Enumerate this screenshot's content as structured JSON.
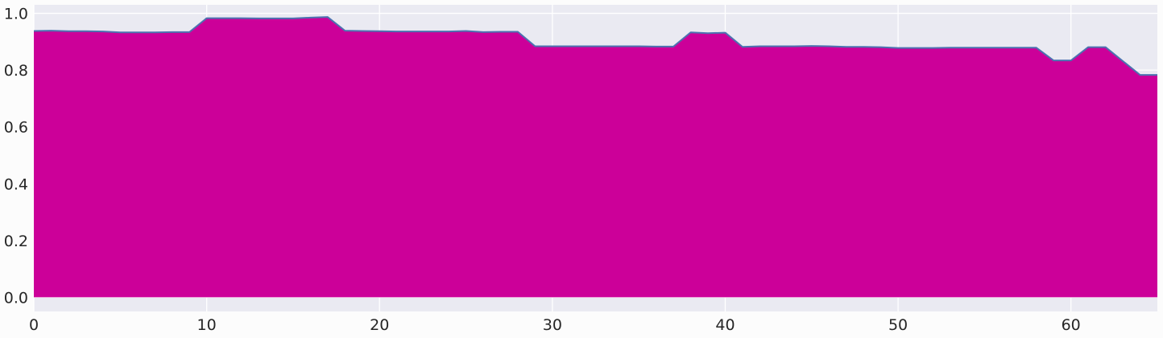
{
  "chart_data": {
    "type": "area",
    "title": "",
    "xlabel": "",
    "ylabel": "",
    "xlim": [
      0,
      65
    ],
    "ylim": [
      -0.05,
      1.03
    ],
    "xticks": [
      0,
      10,
      20,
      30,
      40,
      50,
      60
    ],
    "yticks": [
      0.0,
      0.2,
      0.4,
      0.6,
      0.8,
      1.0
    ],
    "xtick_labels": [
      "0",
      "10",
      "20",
      "30",
      "40",
      "50",
      "60"
    ],
    "ytick_labels": [
      "0.0",
      "0.2",
      "0.4",
      "0.6",
      "0.8",
      "1.0"
    ],
    "grid": true,
    "legend": "none",
    "colors": {
      "fill": "#cc0099",
      "line": "#4c72b0",
      "plot_background": "#eaeaf2",
      "grid": "#ffffff",
      "page_background": "#fcfcfc"
    },
    "series": [
      {
        "x": [
          0,
          1,
          2,
          3,
          4,
          5,
          6,
          7,
          8,
          9,
          10,
          11,
          12,
          13,
          14,
          15,
          16,
          17,
          18,
          19,
          20,
          21,
          22,
          23,
          24,
          25,
          26,
          27,
          28,
          29,
          30,
          31,
          32,
          33,
          34,
          35,
          36,
          37,
          38,
          39,
          40,
          41,
          42,
          43,
          44,
          45,
          46,
          47,
          48,
          49,
          50,
          51,
          52,
          53,
          54,
          55,
          56,
          57,
          58,
          59,
          60,
          61,
          62,
          63,
          64,
          65
        ],
        "values": [
          0.938,
          0.939,
          0.937,
          0.937,
          0.936,
          0.933,
          0.933,
          0.933,
          0.934,
          0.934,
          0.983,
          0.983,
          0.983,
          0.982,
          0.982,
          0.982,
          0.985,
          0.987,
          0.939,
          0.938,
          0.937,
          0.936,
          0.936,
          0.936,
          0.936,
          0.938,
          0.934,
          0.935,
          0.935,
          0.884,
          0.884,
          0.884,
          0.884,
          0.884,
          0.884,
          0.884,
          0.883,
          0.883,
          0.933,
          0.93,
          0.932,
          0.882,
          0.884,
          0.884,
          0.884,
          0.885,
          0.884,
          0.882,
          0.882,
          0.881,
          0.878,
          0.878,
          0.878,
          0.879,
          0.879,
          0.879,
          0.879,
          0.879,
          0.879,
          0.834,
          0.834,
          0.881,
          0.881,
          0.832,
          0.783,
          0.783
        ]
      }
    ]
  }
}
